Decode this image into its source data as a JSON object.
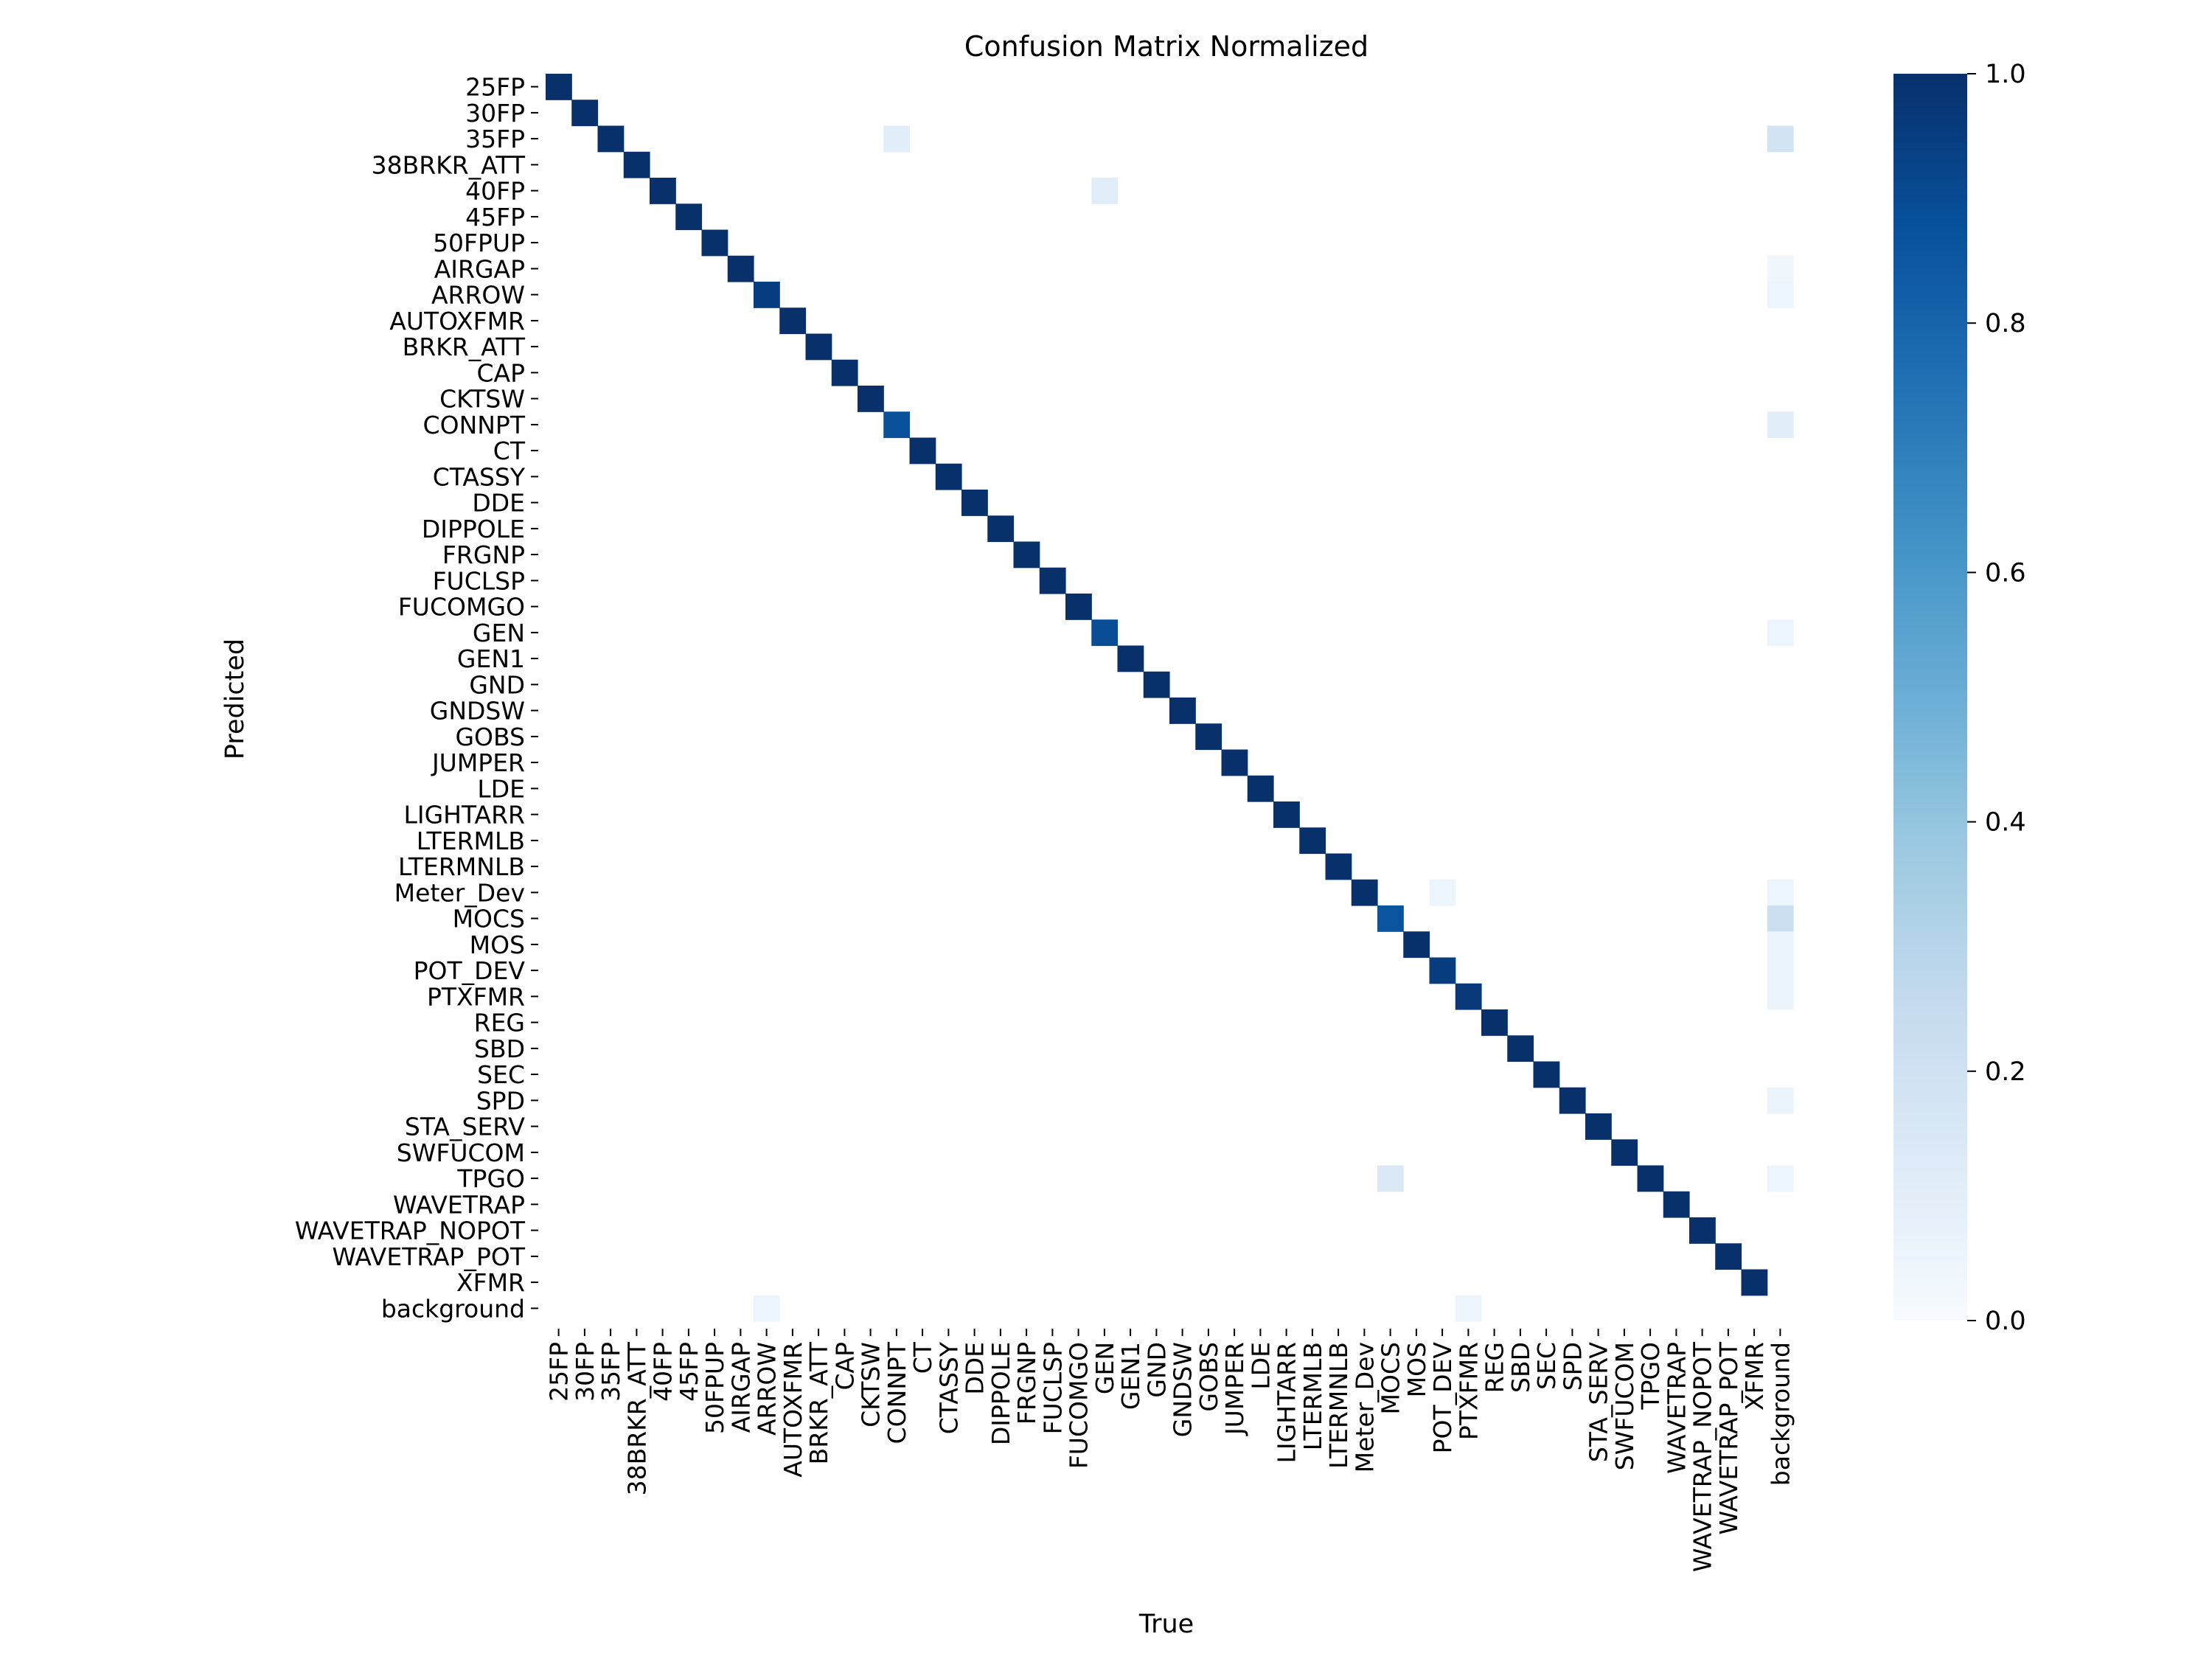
{
  "chart_data": {
    "type": "heatmap",
    "title": "Confusion Matrix Normalized",
    "xlabel": "True",
    "ylabel": "Predicted",
    "labels": [
      "25FP",
      "30FP",
      "35FP",
      "38BRKR_ATT",
      "40FP",
      "45FP",
      "50FPUP",
      "AIRGAP",
      "ARROW",
      "AUTOXFMR",
      "BRKR_ATT",
      "CAP",
      "CKTSW",
      "CONNPT",
      "CT",
      "CTASSY",
      "DDE",
      "DIPPOLE",
      "FRGNP",
      "FUCLSP",
      "FUCOMGO",
      "GEN",
      "GEN1",
      "GND",
      "GNDSW",
      "GOBS",
      "JUMPER",
      "LDE",
      "LIGHTARR",
      "LTERMLB",
      "LTERMNLB",
      "Meter_Dev",
      "MOCS",
      "MOS",
      "POT_DEV",
      "PTXFMR",
      "REG",
      "SBD",
      "SEC",
      "SPD",
      "STA_SERV",
      "SWFUCOM",
      "TPGO",
      "WAVETRAP",
      "WAVETRAP_NOPOT",
      "WAVETRAP_POT",
      "XFMR",
      "background"
    ],
    "diagonal": [
      1.0,
      1.0,
      1.0,
      1.0,
      1.0,
      1.0,
      1.0,
      1.0,
      0.95,
      1.0,
      1.0,
      1.0,
      1.0,
      0.88,
      1.0,
      1.0,
      1.0,
      1.0,
      1.0,
      1.0,
      1.0,
      0.89,
      1.0,
      1.0,
      1.0,
      1.0,
      1.0,
      1.0,
      1.0,
      1.0,
      1.0,
      1.0,
      0.86,
      1.0,
      0.95,
      0.97,
      1.0,
      1.0,
      1.0,
      1.0,
      1.0,
      1.0,
      1.0,
      1.0,
      1.0,
      1.0,
      1.0,
      0.0
    ],
    "off_diagonal": [
      {
        "row": 2,
        "col": 13,
        "value": 0.11
      },
      {
        "row": 2,
        "col": 47,
        "value": 0.19
      },
      {
        "row": 4,
        "col": 21,
        "value": 0.11
      },
      {
        "row": 7,
        "col": 47,
        "value": 0.04
      },
      {
        "row": 8,
        "col": 47,
        "value": 0.05
      },
      {
        "row": 13,
        "col": 47,
        "value": 0.11
      },
      {
        "row": 21,
        "col": 47,
        "value": 0.05
      },
      {
        "row": 31,
        "col": 34,
        "value": 0.05
      },
      {
        "row": 31,
        "col": 47,
        "value": 0.05
      },
      {
        "row": 32,
        "col": 47,
        "value": 0.22
      },
      {
        "row": 33,
        "col": 47,
        "value": 0.06
      },
      {
        "row": 34,
        "col": 47,
        "value": 0.06
      },
      {
        "row": 35,
        "col": 47,
        "value": 0.06
      },
      {
        "row": 39,
        "col": 47,
        "value": 0.06
      },
      {
        "row": 42,
        "col": 32,
        "value": 0.14
      },
      {
        "row": 42,
        "col": 47,
        "value": 0.05
      },
      {
        "row": 47,
        "col": 8,
        "value": 0.05
      },
      {
        "row": 47,
        "col": 35,
        "value": 0.05
      }
    ],
    "vrange": [
      0.0,
      1.0
    ],
    "colorbar_ticks": [
      "0.0",
      "0.2",
      "0.4",
      "0.6",
      "0.8",
      "1.0"
    ],
    "colormap": "Blues",
    "colors": {
      "low": "#f7fbff",
      "high": "#08306b"
    },
    "grid": false
  }
}
